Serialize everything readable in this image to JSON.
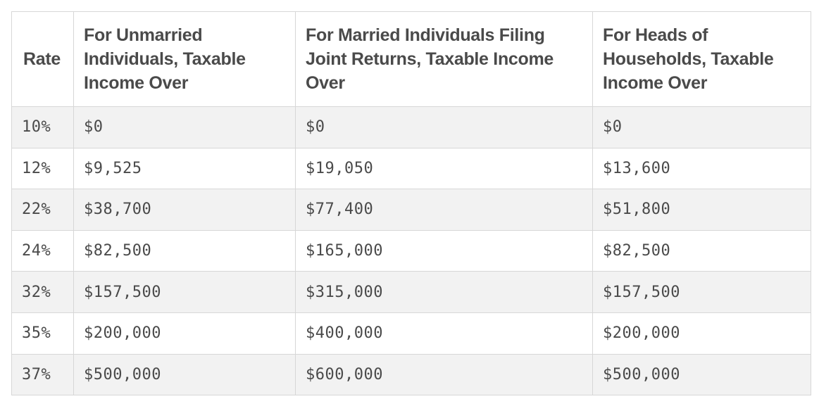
{
  "table": {
    "headers": {
      "rate": "Rate",
      "single": "For Unmarried Individuals, Taxable Income Over",
      "joint": "For Married Individuals Filing Joint Returns, Taxable Income Over",
      "hoh": "For Heads of Households, Taxable Income Over"
    },
    "rows": [
      {
        "rate": "10%",
        "single": "$0",
        "joint": "$0",
        "hoh": "$0"
      },
      {
        "rate": "12%",
        "single": "$9,525",
        "joint": "$19,050",
        "hoh": "$13,600"
      },
      {
        "rate": "22%",
        "single": "$38,700",
        "joint": "$77,400",
        "hoh": "$51,800"
      },
      {
        "rate": "24%",
        "single": "$82,500",
        "joint": "$165,000",
        "hoh": "$82,500"
      },
      {
        "rate": "32%",
        "single": "$157,500",
        "joint": "$315,000",
        "hoh": "$157,500"
      },
      {
        "rate": "35%",
        "single": "$200,000",
        "joint": "$400,000",
        "hoh": "$200,000"
      },
      {
        "rate": "37%",
        "single": "$500,000",
        "joint": "$600,000",
        "hoh": "$500,000"
      }
    ]
  }
}
